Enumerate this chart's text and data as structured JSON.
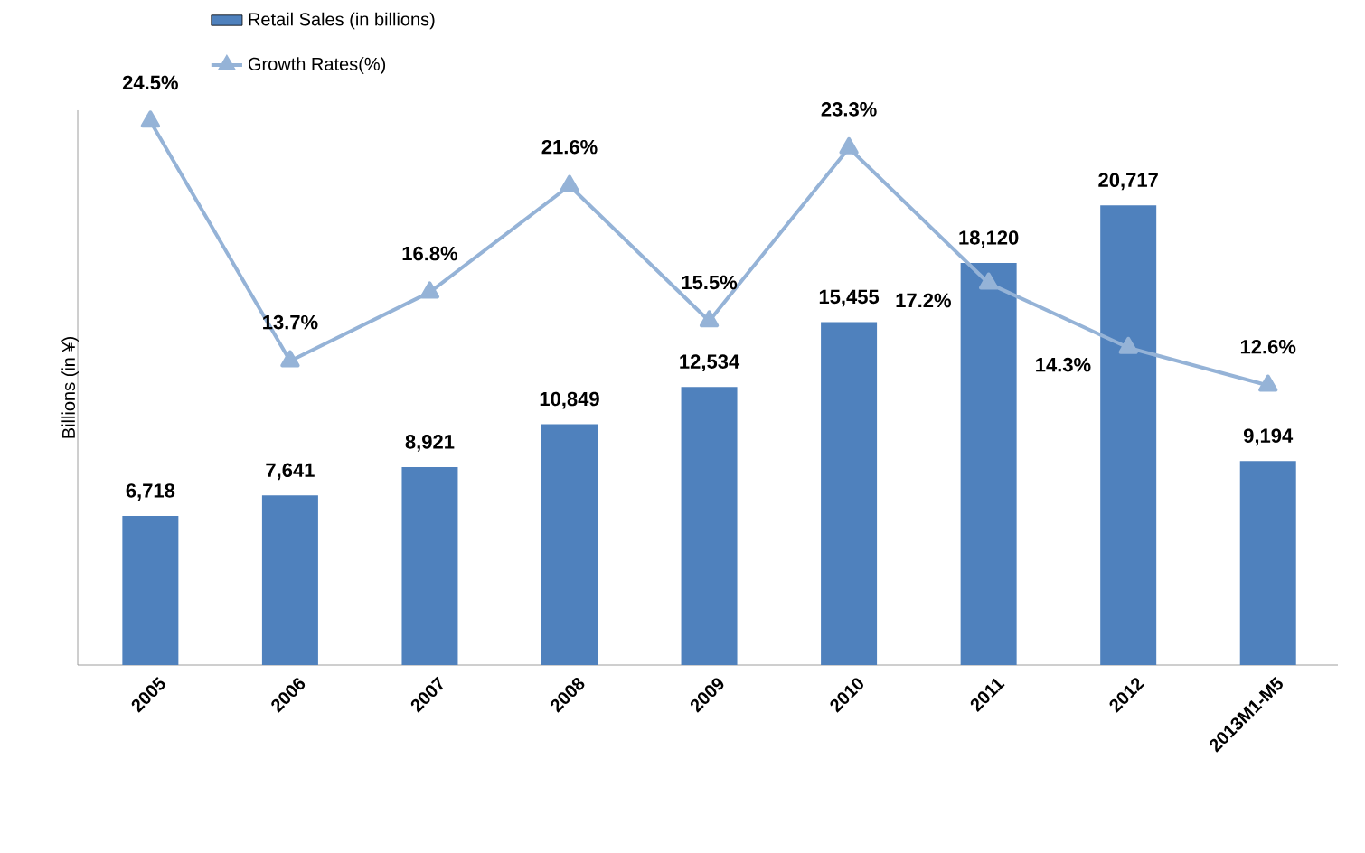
{
  "chart_data": {
    "type": "bar",
    "ylabel": "Billions (in ¥)",
    "categories": [
      "2005",
      "2006",
      "2007",
      "2008",
      "2009",
      "2010",
      "2011",
      "2012",
      "2013M1-M5"
    ],
    "series": [
      {
        "name": "Retail Sales (in billions)",
        "color": "#4f81bd",
        "values": [
          6718,
          7641,
          8921,
          10849,
          12534,
          15455,
          18120,
          20717,
          9194
        ],
        "value_labels": [
          "6,718",
          "7,641",
          "8,921",
          "10,849",
          "12,534",
          "15,455",
          "18,120",
          "20,717",
          "9,194"
        ]
      },
      {
        "name": "Growth Rates(%)",
        "type": "line",
        "axis": "y2",
        "color": "#95b3d7",
        "marker": "triangle",
        "values": [
          24.5,
          13.7,
          16.8,
          21.6,
          15.5,
          23.3,
          17.2,
          14.3,
          12.6
        ],
        "value_labels": [
          "24.5%",
          "13.7%",
          "16.8%",
          "21.6%",
          "15.5%",
          "23.3%",
          "17.2%",
          "14.3%",
          "12.6%"
        ]
      }
    ],
    "ylim": [
      0,
      25000
    ],
    "y2lim": [
      0,
      25
    ],
    "tick_labels": "x",
    "legend": "top left",
    "grid": false
  }
}
